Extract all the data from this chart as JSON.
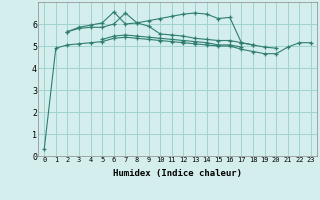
{
  "xlabel": "Humidex (Indice chaleur)",
  "ylabel": "",
  "bg_color": "#d4eeed",
  "grid_color": "#a0d4d0",
  "line_color": "#2e7d6e",
  "marker_color": "#2e7d6e",
  "xlim": [
    -0.5,
    23.5
  ],
  "ylim": [
    0,
    7
  ],
  "yticks": [
    0,
    1,
    2,
    3,
    4,
    5,
    6
  ],
  "xticks": [
    0,
    1,
    2,
    3,
    4,
    5,
    6,
    7,
    8,
    9,
    10,
    11,
    12,
    13,
    14,
    15,
    16,
    17,
    18,
    19,
    20,
    21,
    22,
    23
  ],
  "lines": [
    [
      0.3,
      4.9,
      5.05,
      5.1,
      5.15,
      5.2,
      5.35,
      5.4,
      5.35,
      5.3,
      5.25,
      5.2,
      5.15,
      5.1,
      5.05,
      5.0,
      5.0,
      4.85,
      4.75,
      4.65,
      4.65,
      4.95,
      5.15,
      5.15
    ],
    [
      null,
      null,
      5.65,
      5.8,
      5.85,
      5.85,
      6.0,
      6.5,
      6.05,
      5.9,
      5.55,
      5.5,
      5.45,
      5.35,
      5.3,
      5.25,
      5.25,
      5.15,
      5.05,
      4.95,
      4.9,
      null,
      null,
      null
    ],
    [
      null,
      null,
      5.65,
      5.85,
      5.95,
      6.05,
      6.55,
      6.0,
      6.05,
      6.15,
      6.25,
      6.35,
      6.45,
      6.5,
      6.45,
      6.25,
      6.3,
      5.15,
      5.05,
      null,
      null,
      null,
      null,
      null
    ],
    [
      null,
      null,
      null,
      null,
      null,
      5.3,
      5.45,
      5.5,
      5.45,
      5.4,
      5.35,
      5.3,
      5.25,
      5.2,
      5.15,
      5.05,
      5.05,
      4.95,
      null,
      null,
      null,
      null,
      null,
      null
    ]
  ]
}
